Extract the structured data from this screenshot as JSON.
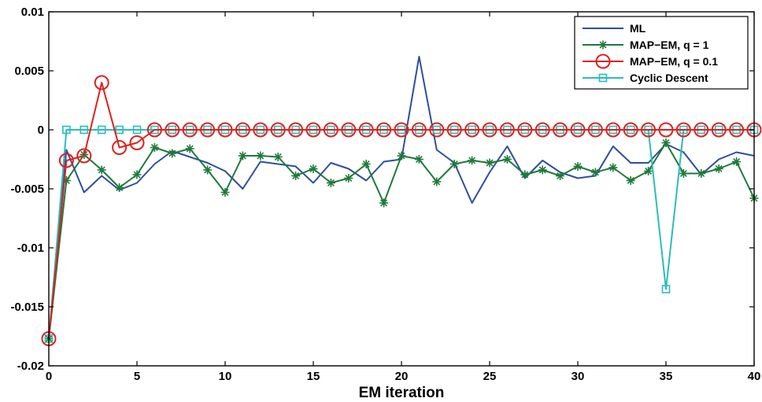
{
  "chart_data": {
    "type": "line",
    "title": "",
    "xlabel": "EM iteration",
    "ylabel": "",
    "xlim": [
      0,
      40
    ],
    "ylim": [
      -0.02,
      0.01
    ],
    "x_ticks": [
      0,
      5,
      10,
      15,
      20,
      25,
      30,
      35,
      40
    ],
    "x_tick_labels": [
      "0",
      "5",
      "10",
      "15",
      "20",
      "25",
      "30",
      "35",
      "40"
    ],
    "y_ticks": [
      0.01,
      0.005,
      0,
      -0.005,
      -0.01,
      -0.015,
      -0.02
    ],
    "y_tick_labels": [
      "0.01",
      "0.005",
      "0",
      "-0.005",
      "-0.01",
      "-0.015",
      "-0.02"
    ],
    "grid": false,
    "legend_position": "top-right",
    "x": [
      0,
      1,
      2,
      3,
      4,
      5,
      6,
      7,
      8,
      9,
      10,
      11,
      12,
      13,
      14,
      15,
      16,
      17,
      18,
      19,
      20,
      21,
      22,
      23,
      24,
      25,
      26,
      27,
      28,
      29,
      30,
      31,
      32,
      33,
      34,
      35,
      36,
      37,
      38,
      39,
      40
    ],
    "series": [
      {
        "name": "ML",
        "color": "#2c4f9c",
        "marker": "none",
        "values": [
          -0.0177,
          -0.0017,
          -0.0053,
          -0.0039,
          -0.0051,
          -0.0045,
          -0.0029,
          -0.0018,
          -0.0023,
          -0.0028,
          -0.0035,
          -0.005,
          -0.0027,
          -0.0029,
          -0.0031,
          -0.0045,
          -0.0028,
          -0.0033,
          -0.0043,
          -0.0027,
          -0.0025,
          0.0062,
          -0.0017,
          -0.0028,
          -0.0062,
          -0.0036,
          -0.0014,
          -0.0041,
          -0.0026,
          -0.0036,
          -0.0041,
          -0.0039,
          -0.0014,
          -0.0028,
          -0.0028,
          -0.0012,
          -0.0019,
          -0.0038,
          -0.0025,
          -0.0019,
          -0.0022
        ]
      },
      {
        "name": "MAP−EM, q = 1",
        "color": "#1e7a3a",
        "marker": "asterisk",
        "values": [
          -0.0177,
          -0.0043,
          -0.0021,
          -0.0034,
          -0.0049,
          -0.0038,
          -0.0015,
          -0.002,
          -0.0016,
          -0.0034,
          -0.0053,
          -0.0022,
          -0.0022,
          -0.0023,
          -0.0039,
          -0.0033,
          -0.0045,
          -0.0041,
          -0.0029,
          -0.0062,
          -0.0022,
          -0.0025,
          -0.0044,
          -0.0029,
          -0.0026,
          -0.0028,
          -0.0025,
          -0.0038,
          -0.0034,
          -0.0039,
          -0.0031,
          -0.0036,
          -0.0032,
          -0.0043,
          -0.0035,
          -0.0011,
          -0.0037,
          -0.0037,
          -0.0033,
          -0.0027,
          -0.0058
        ]
      },
      {
        "name": "MAP−EM, q = 0.1",
        "color": "#e02020",
        "marker": "circle",
        "values": [
          -0.0177,
          -0.0026,
          -0.0022,
          0.004,
          -0.0015,
          -0.0011,
          0,
          0,
          0,
          0,
          0,
          0,
          0,
          0,
          0,
          0,
          0,
          0,
          0,
          0,
          0,
          0,
          0,
          0,
          0,
          0,
          0,
          0,
          0,
          0,
          0,
          0,
          0,
          0,
          0,
          0,
          0,
          0,
          0,
          0,
          0
        ]
      },
      {
        "name": "Cyclic Descent",
        "color": "#2bbcbc",
        "marker": "square",
        "values": [
          -0.0177,
          0,
          0,
          0,
          0,
          0,
          0,
          0,
          0,
          0,
          0,
          0,
          0,
          0,
          0,
          0,
          0,
          0,
          0,
          0,
          0,
          0,
          0,
          0,
          0,
          0,
          0,
          0,
          0,
          0,
          0,
          0,
          0,
          0,
          0,
          -0.0135,
          0,
          0,
          0,
          0,
          0
        ]
      }
    ]
  }
}
